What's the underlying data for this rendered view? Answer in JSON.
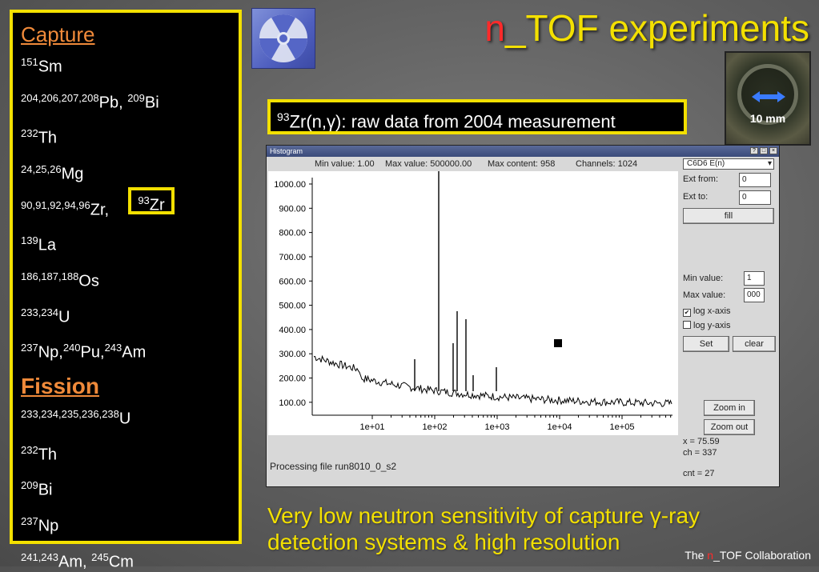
{
  "title": {
    "prefix": "n",
    "suffix": "_TOF experiments"
  },
  "capture": {
    "heading": "Capture",
    "items": [
      {
        "sup1": "151",
        "sym1": "Sm"
      },
      {
        "sup1": "204,206,207,208",
        "sym1": "Pb, ",
        "sup2": "209",
        "sym2": "Bi"
      },
      {
        "sup1": "232",
        "sym1": "Th"
      },
      {
        "sup1": "24,25,26",
        "sym1": "Mg"
      },
      {
        "sup1": "90,91,92,94,96",
        "sym1": "Zr,"
      },
      {
        "sup1": "139",
        "sym1": "La"
      },
      {
        "sup1": "186,187,188",
        "sym1": "Os"
      },
      {
        "sup1": "233,234",
        "sym1": "U"
      },
      {
        "sup1": "237",
        "sym1": "Np,",
        "sup2": "240",
        "sym2": "Pu,",
        "sup3": "243",
        "sym3": "Am"
      }
    ],
    "highlight": {
      "sup": "93",
      "sym": "Zr"
    }
  },
  "fission": {
    "heading": "Fission",
    "items": [
      {
        "sup1": "233,234,235,236,238",
        "sym1": "U"
      },
      {
        "sup1": "232",
        "sym1": "Th"
      },
      {
        "sup1": "209",
        "sym1": "Bi"
      },
      {
        "sup1": "237",
        "sym1": "Np"
      },
      {
        "sup1": "241,243",
        "sym1": "Am, ",
        "sup2": "245",
        "sym2": "Cm"
      }
    ]
  },
  "subtitle": {
    "sup": "93",
    "text_a": "Zr(n,",
    "gamma": "γ",
    "text_b": "): raw data from 2004 measurement"
  },
  "detector": {
    "label": "10 mm"
  },
  "histogram": {
    "window_title": "Histogram",
    "min_value_text": "Min value: 1.00",
    "max_value_text": "Max value: 500000.00",
    "max_content_text": "Max content: 958",
    "channels_text": "Channels: 1024",
    "y_ticks": [
      "1000.00",
      "900.00",
      "800.00",
      "700.00",
      "600.00",
      "500.00",
      "400.00",
      "300.00",
      "200.00",
      "100.00"
    ],
    "x_ticks": [
      "1e+01",
      "1e+02",
      "1e+03",
      "1e+04",
      "1e+05"
    ],
    "status": "Processing file run8010_0_s2"
  },
  "side_panel": {
    "select_value": "C6D6 E(n)",
    "ext_from_label": "Ext from:",
    "ext_from_value": "0",
    "ext_to_label": "Ext to:",
    "ext_to_value": "0",
    "fill_label": "fill",
    "min_label": "Min value:",
    "min_value": "1",
    "max_label": "Max value:",
    "max_value": "000",
    "log_x_label": "log x-axis",
    "log_x_checked": true,
    "log_y_label": "log y-axis",
    "log_y_checked": false,
    "set_label": "Set",
    "clear_label": "clear",
    "zoom_in_label": "Zoom in",
    "zoom_out_label": "Zoom out",
    "readout_x": "x = 75.59",
    "readout_ch": "ch = 337",
    "readout_cnt": "cnt = 27"
  },
  "bottom": {
    "line1_a": "Very low neutron sensitivity of capture ",
    "gamma": "γ",
    "line1_b": "-ray",
    "line2": "detection systems & high resolution"
  },
  "credits": {
    "prefix": "The ",
    "n": "n",
    "suffix": "_TOF Collaboration"
  }
}
